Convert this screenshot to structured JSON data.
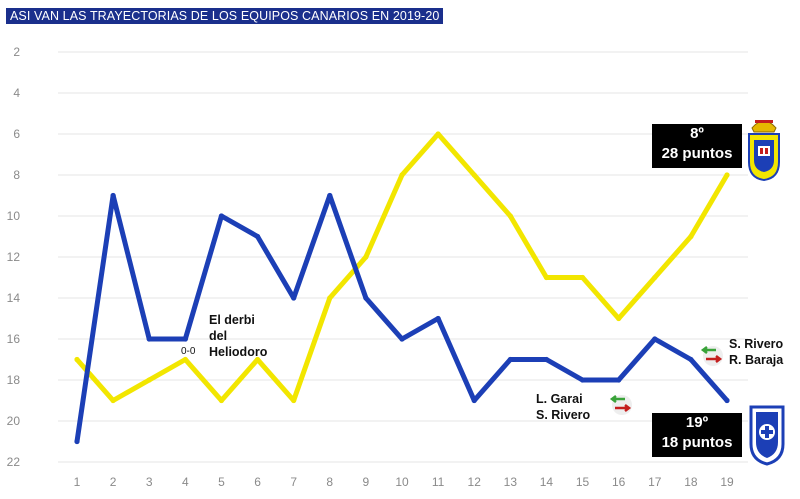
{
  "title": "ASI VAN LAS TRAYECTORIAS DE LOS EQUIPOS CANARIOS EN 2019-20",
  "colors": {
    "las_palmas": "#f2e600",
    "tenerife": "#1c3fb6",
    "grid": "#e4e4e4",
    "tick": "#8a8a8a",
    "badge_bg": "#000000",
    "title_bg": "#1a2f8c",
    "arrow_in": "#3aa33a",
    "arrow_out": "#c41e1e"
  },
  "icons": {
    "las_palmas_crest": "ud-las-palmas-crest-icon",
    "tenerife_crest": "cd-tenerife-crest-icon",
    "transfer_arrows": "swap-arrows-icon"
  },
  "badges": {
    "las_palmas": {
      "position": "8º",
      "points": "28 puntos"
    },
    "tenerife": {
      "position": "19º",
      "points": "18 puntos"
    }
  },
  "annotations": {
    "derbi_lines": [
      "El derbi",
      "del",
      "Heliodoro"
    ],
    "derbi_score": "0-0",
    "transfer1": [
      "L. Garai",
      "S. Rivero"
    ],
    "transfer2": [
      "S. Rivero",
      "R. Baraja"
    ]
  },
  "chart_data": {
    "type": "line",
    "title": "ASI VAN LAS TRAYECTORIAS DE LOS EQUIPOS CANARIOS EN 2019-20",
    "xlabel": "",
    "ylabel": "",
    "x": [
      1,
      2,
      3,
      4,
      5,
      6,
      7,
      8,
      9,
      10,
      11,
      12,
      13,
      14,
      15,
      16,
      17,
      18,
      19
    ],
    "xlim": [
      1,
      19
    ],
    "ylim": [
      22,
      1
    ],
    "y_inverted": true,
    "y_ticks": [
      2,
      4,
      6,
      8,
      10,
      12,
      14,
      16,
      18,
      20,
      22
    ],
    "grid": true,
    "series": [
      {
        "key": "las_palmas",
        "values": [
          17,
          19,
          18,
          17,
          19,
          17,
          19,
          14,
          12,
          8,
          6,
          8,
          10,
          13,
          13,
          15,
          13,
          11,
          8
        ]
      },
      {
        "key": "tenerife",
        "values": [
          21,
          9,
          16,
          16,
          10,
          11,
          14,
          9,
          14,
          16,
          15,
          19,
          17,
          17,
          18,
          18,
          16,
          17,
          19
        ]
      }
    ]
  }
}
